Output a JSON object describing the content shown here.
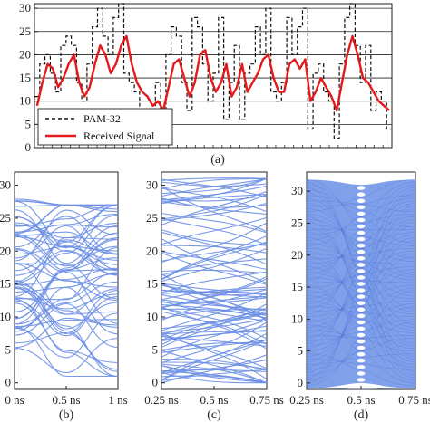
{
  "chart_data": [
    {
      "id": "a",
      "type": "line",
      "panel_label": "(a)",
      "ylim": [
        0,
        31
      ],
      "yticks": [
        "0",
        "5",
        "10",
        "15",
        "20",
        "25",
        "30"
      ],
      "grid": "horizontal",
      "legend": {
        "placement": "bottom-left",
        "entries": [
          "PAM-32",
          "Received Signal"
        ]
      },
      "series": [
        {
          "name": "PAM-32",
          "style": "dashed-step",
          "color": "#111111",
          "values": [
            11,
            18,
            20,
            16,
            12,
            22,
            24,
            22,
            14,
            10,
            18,
            26,
            30,
            24,
            20,
            28,
            32,
            16,
            14,
            12,
            8,
            6,
            4,
            14,
            2,
            20,
            26,
            24,
            14,
            8,
            28,
            26,
            18,
            10,
            16,
            28,
            6,
            14,
            22,
            6,
            16,
            18,
            26,
            20,
            30,
            12,
            10,
            14,
            28,
            20,
            26,
            30,
            4,
            16,
            18,
            12,
            10,
            2,
            18,
            28,
            32,
            22,
            14,
            22,
            8,
            12,
            10,
            4
          ]
        },
        {
          "name": "Received Signal",
          "style": "solid",
          "color": "#e31a1c",
          "values": [
            9,
            14,
            18,
            17,
            13,
            15,
            18,
            20,
            14,
            11,
            13,
            18,
            22,
            20,
            16,
            18,
            22,
            24,
            18,
            14,
            12,
            11,
            9,
            10,
            8,
            13,
            18,
            19,
            15,
            11,
            14,
            20,
            21,
            15,
            12,
            14,
            18,
            11,
            13,
            18,
            12,
            14,
            16,
            19,
            20,
            15,
            12,
            12,
            18,
            19,
            17,
            19,
            10,
            12,
            15,
            13,
            11,
            8,
            14,
            20,
            24,
            20,
            15,
            14,
            12,
            10,
            9,
            8
          ]
        }
      ]
    },
    {
      "id": "b",
      "type": "line",
      "panel_label": "(b)",
      "ylim": [
        -1,
        32
      ],
      "yticks": [
        "0",
        "5",
        "10",
        "15",
        "20",
        "25",
        "30"
      ],
      "xticks": [
        "0 ns",
        "0.5 ns",
        "1 ns"
      ],
      "color": "#6b8fe6",
      "trace_count": 60
    },
    {
      "id": "c",
      "type": "line",
      "panel_label": "(c)",
      "ylim": [
        -1,
        32
      ],
      "yticks": [
        "0",
        "5",
        "10",
        "15",
        "20",
        "25",
        "30"
      ],
      "xticks": [
        "0.25 ns",
        "0.5 ns",
        "0.75 ns"
      ],
      "color": "#6b8fe6",
      "trace_count": 90
    },
    {
      "id": "d",
      "type": "line",
      "panel_label": "(d)",
      "ylim": [
        -1,
        33
      ],
      "yticks": [
        "0",
        "5",
        "10",
        "15",
        "20",
        "25",
        "30"
      ],
      "xticks": [
        "0.25 ns",
        "0.5 ns",
        "0.75 ns"
      ],
      "color": "#6b8fe6",
      "levels": 32
    }
  ]
}
